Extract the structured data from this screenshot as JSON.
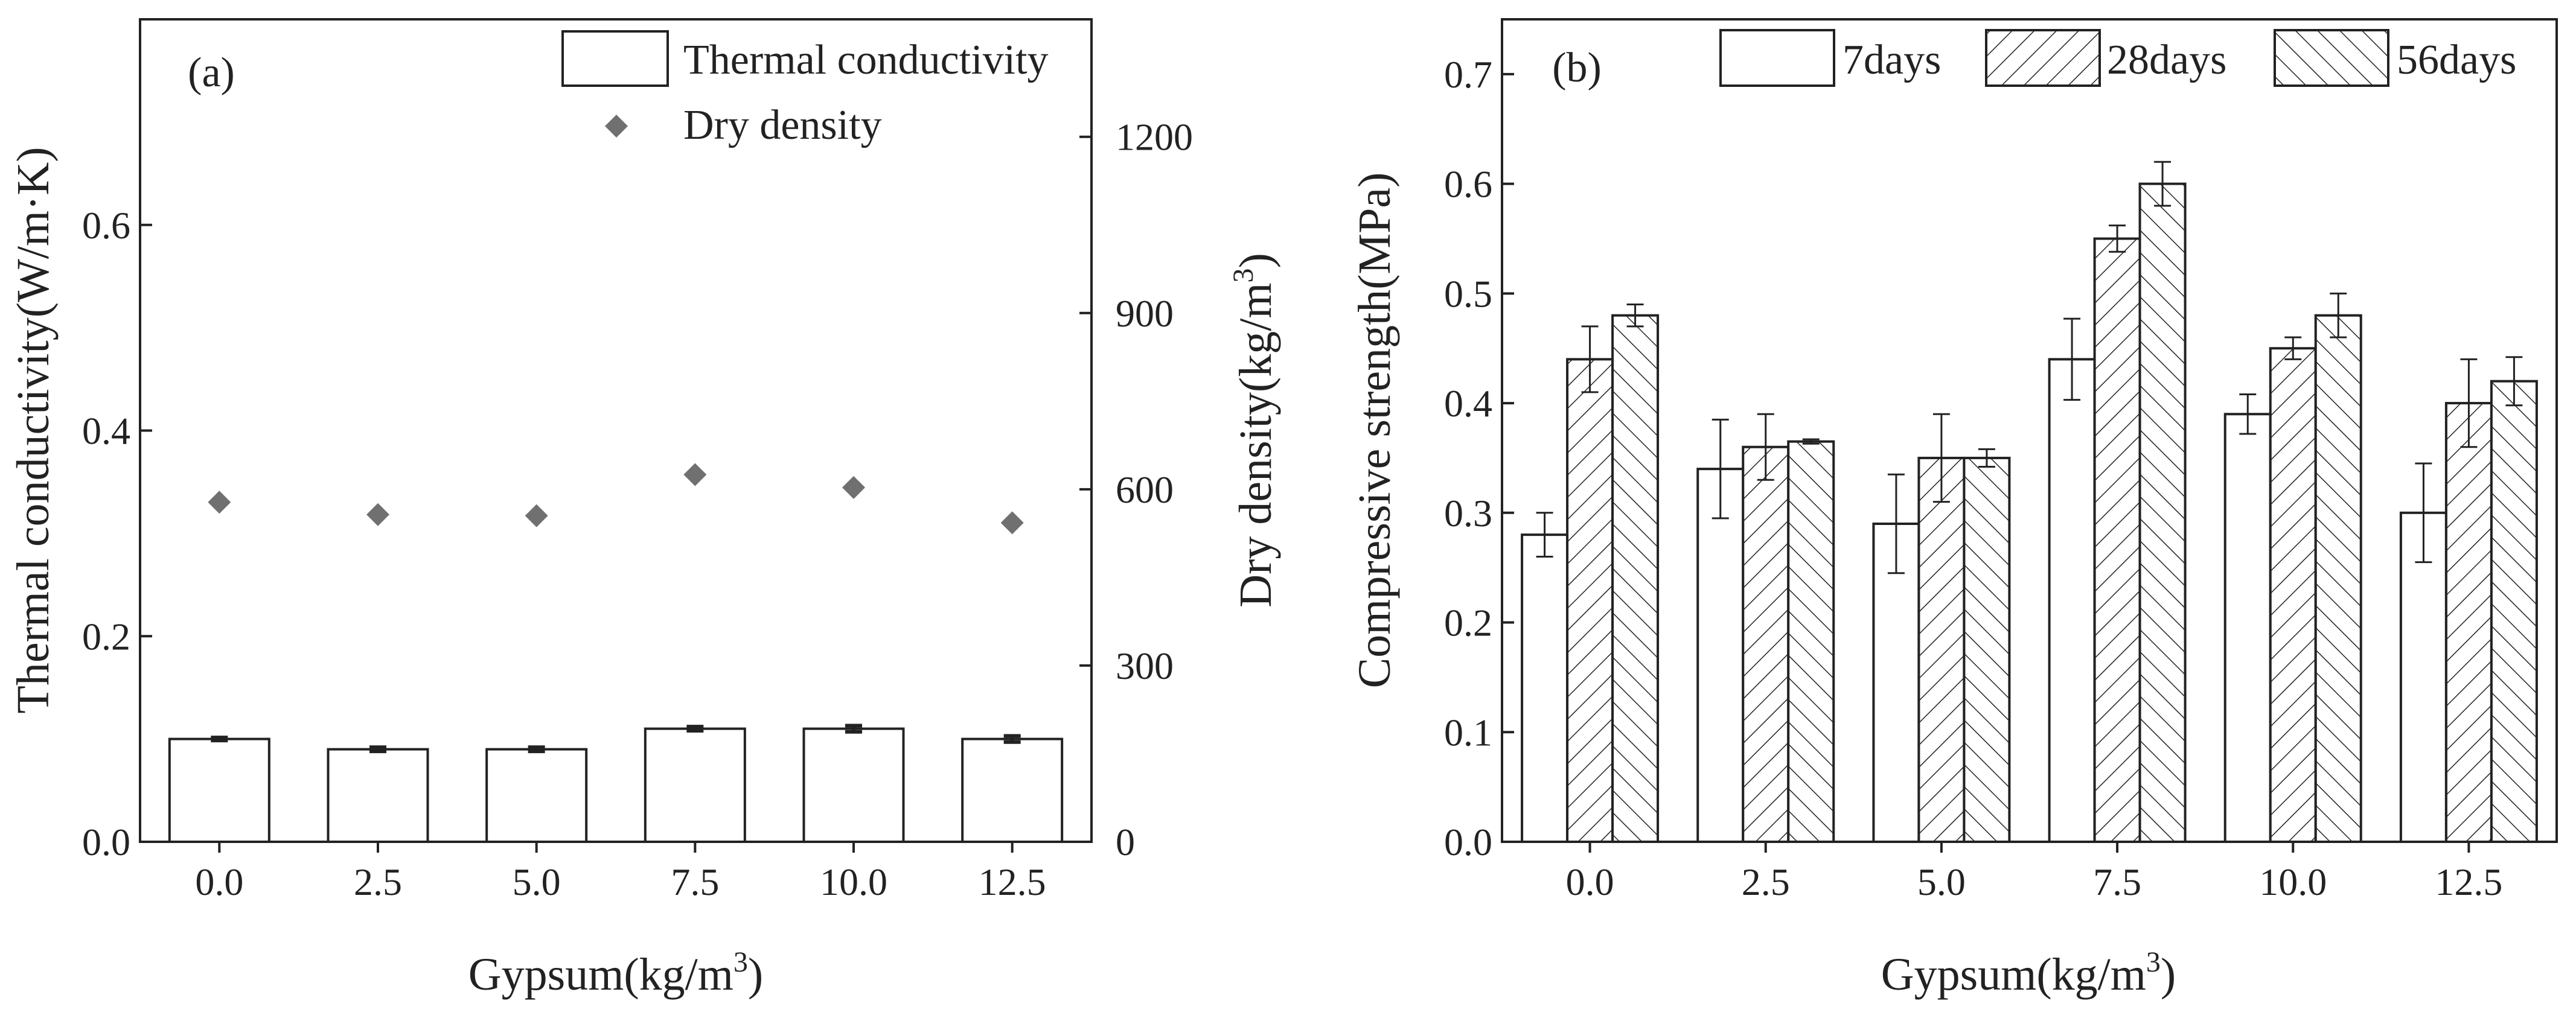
{
  "colors": {
    "ink": "#222222",
    "bar_fill": "#ffffff",
    "density_marker": "#707070"
  },
  "chart_data": [
    {
      "panel_label": "(a)",
      "type": "bar",
      "categories": [
        "0.0",
        "2.5",
        "5.0",
        "7.5",
        "10.0",
        "12.5"
      ],
      "xlabel": "Gypsum(kg/m3)",
      "xlabel_main": "Gypsum(kg/m",
      "xlabel_sup": "3",
      "xlabel_end": ")",
      "ylabel": "Thermal conductivity(W/m·K)",
      "ylim": [
        0,
        0.8
      ],
      "yticks": [
        0.0,
        0.2,
        0.4,
        0.6
      ],
      "ytick_labels": [
        "0.0",
        "0.2",
        "0.4",
        "0.6"
      ],
      "y2label": "Dry density(kg/m3)",
      "y2label_main": "Dry density(kg/m",
      "y2label_sup": "3",
      "y2label_end": ")",
      "y2lim": [
        0,
        1400
      ],
      "y2ticks": [
        0,
        300,
        600,
        900,
        1200
      ],
      "y2tick_labels": [
        "0",
        "300",
        "600",
        "900",
        "1200"
      ],
      "legend_position": "top-right",
      "series": [
        {
          "name": "Thermal conductivity",
          "type": "bar",
          "axis": "left",
          "values": [
            0.1,
            0.09,
            0.09,
            0.11,
            0.11,
            0.1
          ],
          "errors": [
            0.0015,
            0.002,
            0.002,
            0.002,
            0.003,
            0.003
          ]
        },
        {
          "name": "Dry density",
          "type": "scatter",
          "axis": "right",
          "marker": "diamond",
          "values": [
            578,
            557,
            555,
            625,
            603,
            543
          ]
        }
      ]
    },
    {
      "panel_label": "(b)",
      "type": "bar",
      "categories": [
        "0.0",
        "2.5",
        "5.0",
        "7.5",
        "10.0",
        "12.5"
      ],
      "xlabel": "Gypsum(kg/m3)",
      "xlabel_main": "Gypsum(kg/m",
      "xlabel_sup": "3",
      "xlabel_end": ")",
      "ylabel": "Compressive strength(MPa)",
      "ylim": [
        0,
        0.75
      ],
      "yticks": [
        0.0,
        0.1,
        0.2,
        0.3,
        0.4,
        0.5,
        0.6,
        0.7
      ],
      "ytick_labels": [
        "0.0",
        "0.1",
        "0.2",
        "0.3",
        "0.4",
        "0.5",
        "0.6",
        "0.7"
      ],
      "legend_position": "top",
      "series": [
        {
          "name": "7days",
          "pattern": "none",
          "values": [
            0.28,
            0.34,
            0.29,
            0.44,
            0.39,
            0.3
          ],
          "errors": [
            0.02,
            0.045,
            0.045,
            0.037,
            0.018,
            0.045
          ]
        },
        {
          "name": "28days",
          "pattern": "forward-hatch",
          "values": [
            0.44,
            0.36,
            0.35,
            0.55,
            0.45,
            0.4
          ],
          "errors": [
            0.03,
            0.03,
            0.04,
            0.012,
            0.01,
            0.04
          ]
        },
        {
          "name": "56days",
          "pattern": "backward-hatch",
          "values": [
            0.48,
            0.365,
            0.35,
            0.6,
            0.48,
            0.42
          ],
          "errors": [
            0.01,
            0.002,
            0.008,
            0.02,
            0.02,
            0.022
          ]
        }
      ]
    }
  ]
}
